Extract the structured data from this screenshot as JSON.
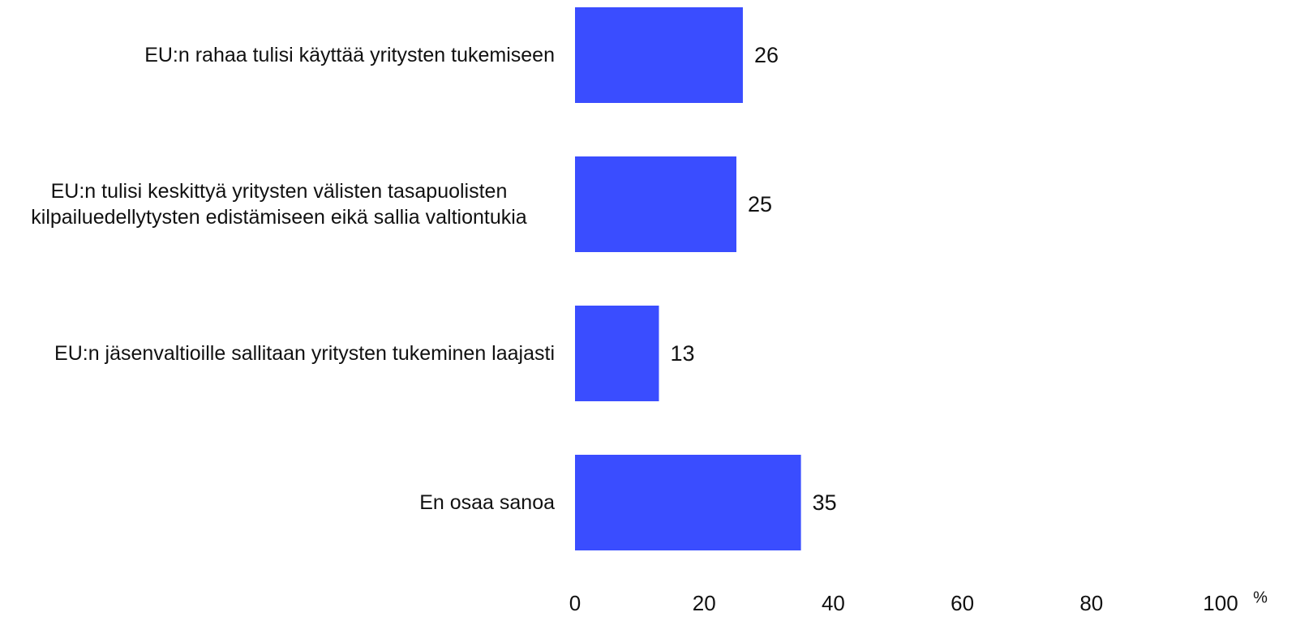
{
  "chart_data": {
    "type": "bar",
    "orientation": "horizontal",
    "categories": [
      "EU:n rahaa tulisi käyttää yritysten tukemiseen",
      "EU:n tulisi keskittyä yritysten välisten tasapuolisten kilpailuedellytysten edistämiseen eikä sallia valtiontukia",
      "EU:n jäsenvaltioille sallitaan yritysten tukeminen laajasti",
      "En osaa sanoa"
    ],
    "values": [
      26,
      25,
      13,
      35
    ],
    "color": "#3a4dff",
    "xlim": [
      0,
      100
    ],
    "xticks": [
      0,
      20,
      40,
      60,
      80,
      100
    ],
    "xlabel": "%",
    "grid": false
  }
}
